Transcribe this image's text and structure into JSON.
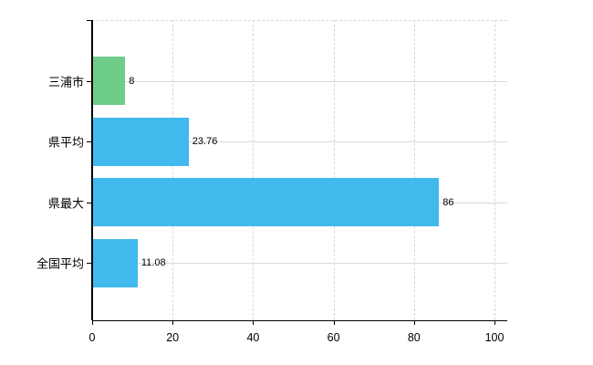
{
  "chart_data": {
    "type": "bar",
    "orientation": "horizontal",
    "title": "",
    "categories": [
      "三浦市",
      "県平均",
      "県最大",
      "全国平均"
    ],
    "values": [
      8,
      23.76,
      86,
      11.08
    ],
    "value_labels": [
      "8",
      "23.76",
      "86",
      "11.08"
    ],
    "bar_colors": [
      "#6ecd89",
      "#41b9ec",
      "#41b9ec",
      "#41b9ec"
    ],
    "x_ticks": [
      0,
      20,
      40,
      60,
      80,
      100
    ],
    "x_tick_labels": [
      "0",
      "20",
      "40",
      "60",
      "80",
      "100"
    ],
    "xlim": [
      0,
      100
    ],
    "grid": true,
    "legend": "none",
    "xlabel": "",
    "ylabel": ""
  },
  "colors": {
    "axis": "#000000",
    "grid": "#d9d9d9",
    "background": "#ffffff",
    "highlight_bar": "#6ecd89",
    "default_bar": "#41b9ec"
  }
}
